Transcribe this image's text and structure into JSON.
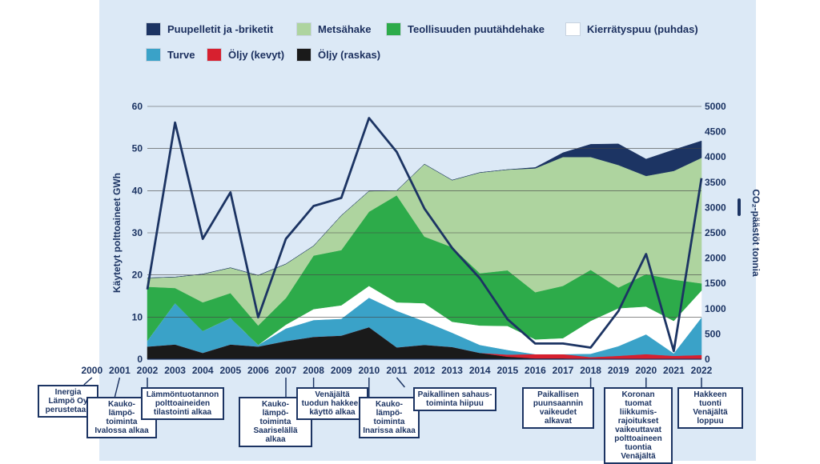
{
  "chart_data": {
    "type": "area",
    "x": [
      2002,
      2003,
      2004,
      2005,
      2006,
      2007,
      2008,
      2009,
      2010,
      2011,
      2012,
      2013,
      2014,
      2015,
      2016,
      2017,
      2018,
      2019,
      2020,
      2021,
      2022
    ],
    "xticks": [
      "2000",
      "2001",
      "2002",
      "2003",
      "2004",
      "2005",
      "2006",
      "2007",
      "2008",
      "2009",
      "2010",
      "2011",
      "2012",
      "2013",
      "2014",
      "2015",
      "2016",
      "2017",
      "2018",
      "2019",
      "2020",
      "2021",
      "2022"
    ],
    "ylabel": "Käytetyt polttoaineet GWh",
    "y2label": "CO₂-päästöt tonnia",
    "ylim": [
      0,
      60
    ],
    "y2lim": [
      0,
      5000
    ],
    "yticks": [
      "0",
      "10",
      "20",
      "30",
      "40",
      "50",
      "60"
    ],
    "y2ticks": [
      "0",
      "500",
      "1000",
      "1500",
      "2000",
      "2500",
      "3000",
      "3500",
      "4000",
      "4500",
      "5000"
    ],
    "grid": true,
    "legend_position": "top",
    "series": [
      {
        "name": "Öljy (raskas)",
        "color": "#1a1a1a",
        "values": [
          3,
          3.5,
          1.5,
          3.5,
          3,
          4.3,
          5.3,
          5.6,
          7.6,
          2.8,
          3.4,
          2.9,
          1.5,
          0.6,
          0.2,
          0.2,
          0,
          0,
          0,
          0,
          0
        ]
      },
      {
        "name": "Öljy (kevyt)",
        "color": "#d7202f",
        "values": [
          0,
          0,
          0,
          0,
          0,
          0,
          0,
          0,
          0,
          0,
          0,
          0,
          0,
          0.5,
          1,
          1,
          0.5,
          0.8,
          1.2,
          0.8,
          1
        ]
      },
      {
        "name": "Turve",
        "color": "#3aa2c8",
        "values": [
          1.4,
          9.8,
          5.2,
          6.3,
          0.4,
          3,
          4,
          4,
          7,
          8.7,
          5.6,
          3.4,
          1.9,
          1.1,
          0,
          0,
          0.8,
          2.3,
          4.7,
          0.6,
          8.9
        ]
      },
      {
        "name": "Kierrätyspuu (puhdas)",
        "color": "#ffffff",
        "values": [
          0,
          0,
          0,
          0,
          0,
          0.9,
          2.6,
          3.2,
          2.8,
          2,
          4.3,
          2.6,
          4.6,
          5.7,
          3.5,
          3.8,
          7.8,
          9,
          6.6,
          7.7,
          6.4
        ]
      },
      {
        "name": "Teollisuuden puutähdehake",
        "color": "#2dab4a",
        "values": [
          12.8,
          3.6,
          6.8,
          5.9,
          4.6,
          6.3,
          12.7,
          13.1,
          17.6,
          25.4,
          15.8,
          17.7,
          12.4,
          13.2,
          11.2,
          12.4,
          12.1,
          4.9,
          7.7,
          9.8,
          1.7
        ]
      },
      {
        "name": "Metsähake",
        "color": "#aed49f",
        "values": [
          2.1,
          2.6,
          6.7,
          6,
          11.9,
          8.1,
          2.3,
          8.2,
          4.9,
          1.1,
          17.2,
          15.9,
          23.9,
          23.9,
          29.4,
          30.6,
          26.8,
          29.1,
          23.3,
          25.8,
          29.8
        ]
      },
      {
        "name": "Puupelletit ja -briketit",
        "color": "#1c3463",
        "values": [
          0,
          0,
          0,
          0,
          0,
          0,
          0,
          0,
          0,
          0,
          0,
          0,
          0,
          0,
          0.2,
          1,
          3,
          5,
          4,
          5,
          4
        ]
      }
    ],
    "co2_series": {
      "name": "CO₂-päästöt tonnia",
      "color": "#1c3463",
      "values": [
        1380,
        4680,
        2380,
        3300,
        830,
        2380,
        3030,
        3190,
        4770,
        4100,
        2980,
        2200,
        1600,
        790,
        310,
        310,
        230,
        950,
        2080,
        160,
        3580
      ]
    }
  },
  "annotations": [
    {
      "id": "a2000",
      "text": "Inergia\nLämpö Oy\nperustetaan"
    },
    {
      "id": "a2001",
      "text": "Kauko-\nlämpö-\ntoiminta\nIvalossa alkaa"
    },
    {
      "id": "a2002",
      "text": "Lämmöntuotannon\npolttoaineiden\ntilastointi alkaa"
    },
    {
      "id": "a2007",
      "text": "Kauko-\nlämpö-\ntoiminta\nSaariselällä alkaa"
    },
    {
      "id": "a2008",
      "text": "Venäjältä\ntuodun hakkeen\nkäyttö alkaa"
    },
    {
      "id": "a2010",
      "text": "Kauko-\nlämpö-\ntoiminta\nInarissa alkaa"
    },
    {
      "id": "a2011",
      "text": "Paikallinen sahaus-\ntoiminta hiipuu"
    },
    {
      "id": "a2018",
      "text": "Paikallisen\npuunsaannin\nvaikeudet alkavat"
    },
    {
      "id": "a2020",
      "text": "Koronan tuomat\nliikkumis-\nrajoitukset\nvaikeuttavat\npolttoaineen\ntuontia\nVenäjältä"
    },
    {
      "id": "a2022",
      "text": "Hakkeen\ntuonti Venäjältä\nloppuu"
    }
  ]
}
